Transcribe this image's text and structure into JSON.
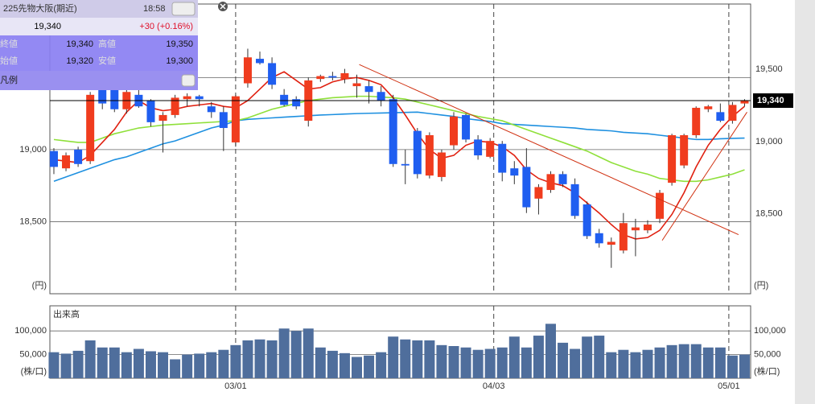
{
  "info_panel": {
    "title": "225先物大阪(期近)",
    "time": "18:58",
    "price": "19,340",
    "change": "+30 (+0.16%)",
    "rows": [
      [
        "終値",
        "19,340",
        "高値",
        "19,350"
      ],
      [
        "始値",
        "19,320",
        "安値",
        "19,300"
      ]
    ],
    "legend": "凡例"
  },
  "chart_data": {
    "type": "candlestick",
    "up_color": "#f03c1e",
    "down_color": "#1f5ef0",
    "open": [
      18990,
      18870,
      19000,
      18920,
      19460,
      19450,
      19280,
      19380,
      19340,
      19200,
      19240,
      19350,
      19370,
      19300,
      19260,
      19050,
      19460,
      19630,
      19600,
      19380,
      19350,
      19200,
      19490,
      19510,
      19490,
      19440,
      19440,
      19400,
      19350,
      18900,
      19130,
      18820,
      18810,
      19030,
      19240,
      19070,
      18950,
      19040,
      18870,
      18880,
      18660,
      18720,
      18830,
      18760,
      18620,
      18420,
      18340,
      18300,
      18440,
      18440,
      18520,
      18770,
      18890,
      19100,
      19280,
      19260,
      19200,
      19320
    ],
    "high": [
      19010,
      18980,
      19020,
      19400,
      19500,
      19480,
      19420,
      19420,
      19350,
      19260,
      19380,
      19390,
      19380,
      19330,
      19300,
      19380,
      19700,
      19680,
      19640,
      19420,
      19370,
      19500,
      19520,
      19540,
      19560,
      19520,
      19480,
      19440,
      19380,
      19000,
      19150,
      19120,
      19000,
      19260,
      19250,
      19100,
      19080,
      19060,
      18920,
      19010,
      18760,
      18850,
      18850,
      18800,
      18640,
      18450,
      18390,
      18560,
      18520,
      18510,
      18720,
      19110,
      19110,
      19300,
      19310,
      19320,
      19330,
      19350
    ],
    "low": [
      18830,
      18850,
      18880,
      18900,
      19280,
      19260,
      19250,
      19290,
      19160,
      18980,
      19220,
      19300,
      19300,
      19220,
      18990,
      19020,
      19430,
      19590,
      19420,
      19300,
      19280,
      19160,
      19470,
      19480,
      19460,
      19360,
      19320,
      19300,
      18880,
      18760,
      18800,
      18800,
      18780,
      19000,
      19050,
      18930,
      18940,
      18780,
      18760,
      18560,
      18550,
      18700,
      18740,
      18520,
      18380,
      18320,
      18180,
      18280,
      18260,
      18420,
      18490,
      18750,
      18870,
      19080,
      19260,
      19190,
      19180,
      19300
    ],
    "close": [
      18880,
      18960,
      18900,
      19380,
      19320,
      19280,
      19400,
      19300,
      19190,
      19240,
      19360,
      19370,
      19350,
      19260,
      19150,
      19370,
      19640,
      19600,
      19450,
      19310,
      19300,
      19480,
      19510,
      19500,
      19530,
      19460,
      19400,
      19340,
      18900,
      18890,
      18830,
      19100,
      18980,
      19230,
      19070,
      18960,
      19060,
      18840,
      18820,
      18600,
      18740,
      18830,
      18760,
      18540,
      18400,
      18350,
      18360,
      18490,
      18460,
      18480,
      18700,
      19100,
      19100,
      19290,
      19300,
      19200,
      19310,
      19340
    ],
    "xlim": [
      -0.33,
      57.5
    ],
    "xticks": [
      {
        "value": 15.0,
        "label": "03/01"
      },
      {
        "value": 36.3,
        "label": "04/03"
      },
      {
        "value": 55.7,
        "label": "05/01"
      }
    ],
    "ylim": [
      18000,
      20010
    ],
    "yticks": [
      {
        "value": 18500,
        "label": "18,500"
      },
      {
        "value": 19000,
        "label": "19,000"
      },
      {
        "value": 19500,
        "label": "19,500"
      }
    ],
    "y_unit_label": "(円)",
    "last_price": {
      "value": 19340,
      "label": "19,340"
    },
    "moving_averages": [
      {
        "color": "#1e90e0",
        "values": [
          18780,
          18810,
          18840,
          18870,
          18900,
          18930,
          18950,
          18980,
          19010,
          19040,
          19060,
          19090,
          19120,
          19150,
          19170,
          19200,
          19210,
          19215,
          19220,
          19225,
          19230,
          19235,
          19240,
          19243,
          19247,
          19250,
          19252,
          19254,
          19256,
          19258,
          19260,
          19250,
          19240,
          19230,
          19215,
          19205,
          19195,
          19180,
          19175,
          19170,
          19165,
          19160,
          19155,
          19150,
          19140,
          19135,
          19130,
          19120,
          19115,
          19110,
          19100,
          19090,
          19080,
          19070,
          19070,
          19075,
          19078,
          19080
        ]
      },
      {
        "color": "#8fe03a",
        "values": [
          19070,
          19060,
          19050,
          19050,
          19080,
          19110,
          19130,
          19150,
          19160,
          19170,
          19175,
          19180,
          19185,
          19190,
          19195,
          19200,
          19220,
          19250,
          19280,
          19300,
          19320,
          19340,
          19350,
          19360,
          19365,
          19370,
          19370,
          19365,
          19360,
          19350,
          19330,
          19310,
          19290,
          19270,
          19250,
          19230,
          19215,
          19200,
          19170,
          19140,
          19110,
          19080,
          19050,
          19020,
          18990,
          18950,
          18910,
          18880,
          18850,
          18830,
          18800,
          18790,
          18780,
          18780,
          18790,
          18810,
          18830,
          18860
        ]
      },
      {
        "color": "#e02010",
        "values": [
          18930,
          18920,
          18910,
          18960,
          19050,
          19140,
          19260,
          19340,
          19290,
          19270,
          19280,
          19300,
          19310,
          19320,
          19300,
          19290,
          19340,
          19420,
          19500,
          19540,
          19480,
          19420,
          19430,
          19470,
          19490,
          19500,
          19480,
          19450,
          19360,
          19240,
          19110,
          19000,
          18940,
          18960,
          19030,
          19060,
          19050,
          19020,
          18960,
          18860,
          18800,
          18770,
          18750,
          18700,
          18630,
          18560,
          18480,
          18410,
          18380,
          18390,
          18440,
          18550,
          18700,
          18880,
          19030,
          19140,
          19230,
          19300
        ]
      }
    ],
    "trendlines": [
      {
        "color": "#d03010",
        "x": [
          25.2,
          56.5
        ],
        "y": [
          19590,
          18410
        ]
      },
      {
        "color": "#d03010",
        "x": [
          50.2,
          57.2
        ],
        "y": [
          18370,
          19260
        ]
      }
    ],
    "volume": {
      "title": "出来高",
      "color": "#4f6e9c",
      "unit_label": "(株/口)",
      "ylim": [
        0,
        153000
      ],
      "yticks": [
        {
          "value": 50000,
          "label": "50,000"
        },
        {
          "value": 100000,
          "label": "100,000"
        }
      ],
      "values": [
        55000,
        52000,
        58000,
        80000,
        65000,
        65000,
        55000,
        62000,
        57000,
        55000,
        40000,
        50000,
        52000,
        55000,
        60000,
        70000,
        80000,
        82000,
        80000,
        105000,
        100000,
        105000,
        65000,
        58000,
        53000,
        45000,
        48000,
        55000,
        88000,
        82000,
        80000,
        80000,
        70000,
        68000,
        65000,
        60000,
        62000,
        65000,
        88000,
        65000,
        90000,
        115000,
        75000,
        62000,
        88000,
        90000,
        55000,
        60000,
        55000,
        60000,
        65000,
        70000,
        72000,
        72000,
        65000,
        65000,
        48000,
        50000
      ]
    }
  }
}
